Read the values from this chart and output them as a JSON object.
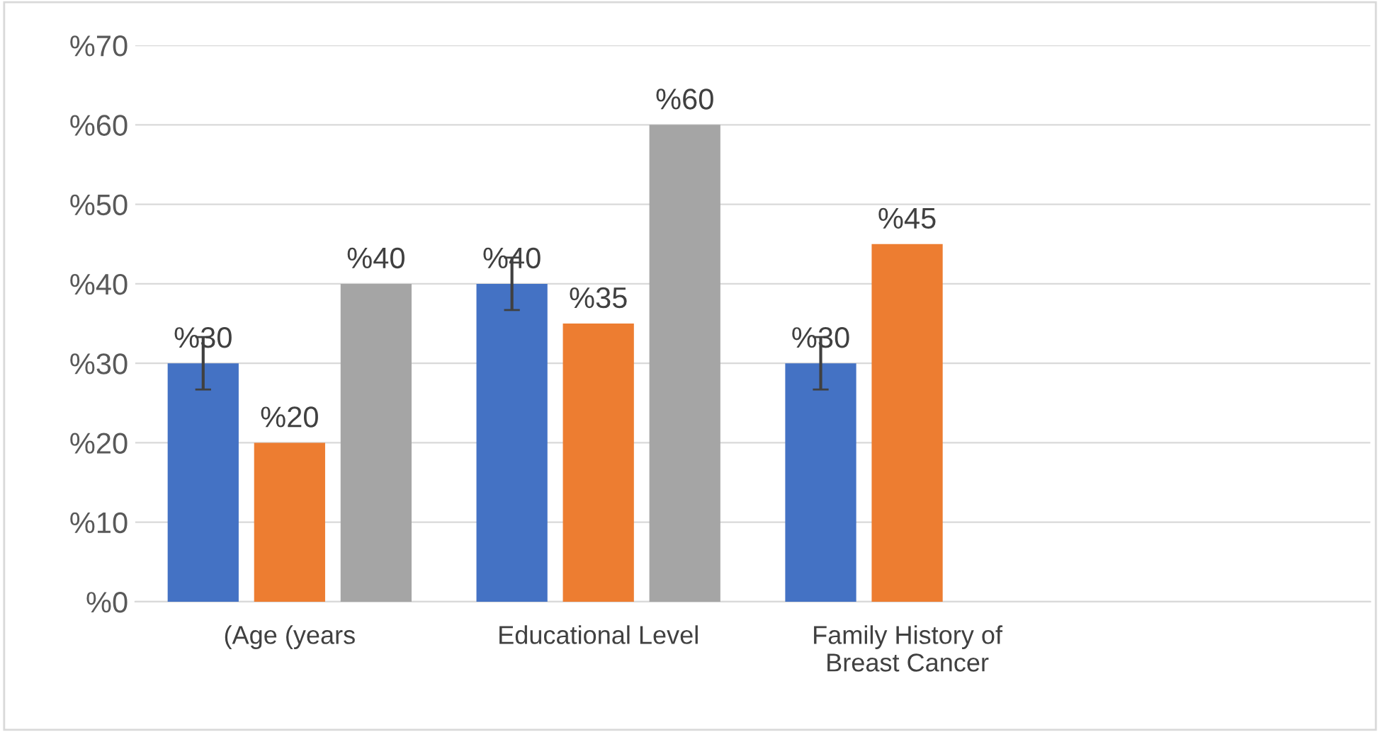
{
  "chart_data": {
    "type": "bar",
    "categories": [
      "(Age (years",
      "Educational Level",
      "Family History of\nBreast Cancer",
      null
    ],
    "series": [
      {
        "color": "#4472c4",
        "values": [
          30,
          40,
          30,
          null
        ],
        "errors": [
          3.3,
          3.3,
          3.3,
          null
        ],
        "value_labels": [
          "%30",
          "%40",
          "%30",
          null
        ]
      },
      {
        "color": "#ed7d31",
        "values": [
          20,
          35,
          45,
          null
        ],
        "value_labels": [
          "%20",
          "%35",
          "%45",
          null
        ]
      },
      {
        "color": "#a5a5a5",
        "values": [
          40,
          60,
          null,
          null
        ],
        "value_labels": [
          "%40",
          "%60",
          null,
          null
        ]
      }
    ],
    "ylim": [
      0,
      70
    ],
    "yticks": [
      {
        "value": 0,
        "label": "%0"
      },
      {
        "value": 10,
        "label": "%10"
      },
      {
        "value": 20,
        "label": "%20"
      },
      {
        "value": 30,
        "label": "%30"
      },
      {
        "value": 40,
        "label": "%40"
      },
      {
        "value": 50,
        "label": "%50"
      },
      {
        "value": 60,
        "label": "%60"
      },
      {
        "value": 70,
        "label": "%70"
      }
    ],
    "grid": "y"
  }
}
